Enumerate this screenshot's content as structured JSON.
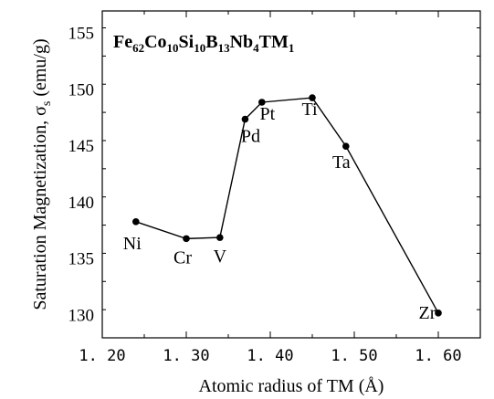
{
  "chart_data": {
    "type": "line",
    "title": "Fe62Co10Si10B13Nb4TM1",
    "title_parts": [
      {
        "text": "Fe",
        "sub": false
      },
      {
        "text": "62",
        "sub": true
      },
      {
        "text": "Co",
        "sub": false
      },
      {
        "text": "10",
        "sub": true
      },
      {
        "text": "Si",
        "sub": false
      },
      {
        "text": "10",
        "sub": true
      },
      {
        "text": "B",
        "sub": false
      },
      {
        "text": "13",
        "sub": true
      },
      {
        "text": "Nb",
        "sub": false
      },
      {
        "text": "4",
        "sub": true
      },
      {
        "text": "TM",
        "sub": false
      },
      {
        "text": "1",
        "sub": true
      }
    ],
    "xlabel": "Atomic radius of TM (Å)",
    "ylabel": "Saturation Magnetization, σs (emu/g)",
    "ylabel_parts": [
      {
        "text": "Saturation Magnetization, σ",
        "sub": false
      },
      {
        "text": "s",
        "sub": true
      },
      {
        "text": " (emu/g)",
        "sub": false
      }
    ],
    "xlim": [
      1.2,
      1.65
    ],
    "ylim": [
      128,
      157
    ],
    "xticks": [
      1.2,
      1.3,
      1.4,
      1.5,
      1.6
    ],
    "xtick_labels": [
      "1. 20",
      "1. 30",
      "1. 40",
      "1. 50",
      "1. 60"
    ],
    "yticks": [
      130,
      135,
      140,
      145,
      150,
      155
    ],
    "ytick_labels": [
      "130",
      "135",
      "140",
      "145",
      "150",
      "155"
    ],
    "grid": false,
    "series": [
      {
        "points": [
          {
            "label": "Ni",
            "x": 1.24,
            "y": 138.3
          },
          {
            "label": "Cr",
            "x": 1.3,
            "y": 136.8
          },
          {
            "label": "V",
            "x": 1.34,
            "y": 136.9
          },
          {
            "label": "Pd",
            "x": 1.37,
            "y": 147.4
          },
          {
            "label": "Pt",
            "x": 1.39,
            "y": 148.9
          },
          {
            "label": "Ti",
            "x": 1.45,
            "y": 149.3
          },
          {
            "label": "Ta",
            "x": 1.49,
            "y": 145.0
          },
          {
            "label": "Zr",
            "x": 1.6,
            "y": 130.2
          }
        ]
      }
    ]
  }
}
